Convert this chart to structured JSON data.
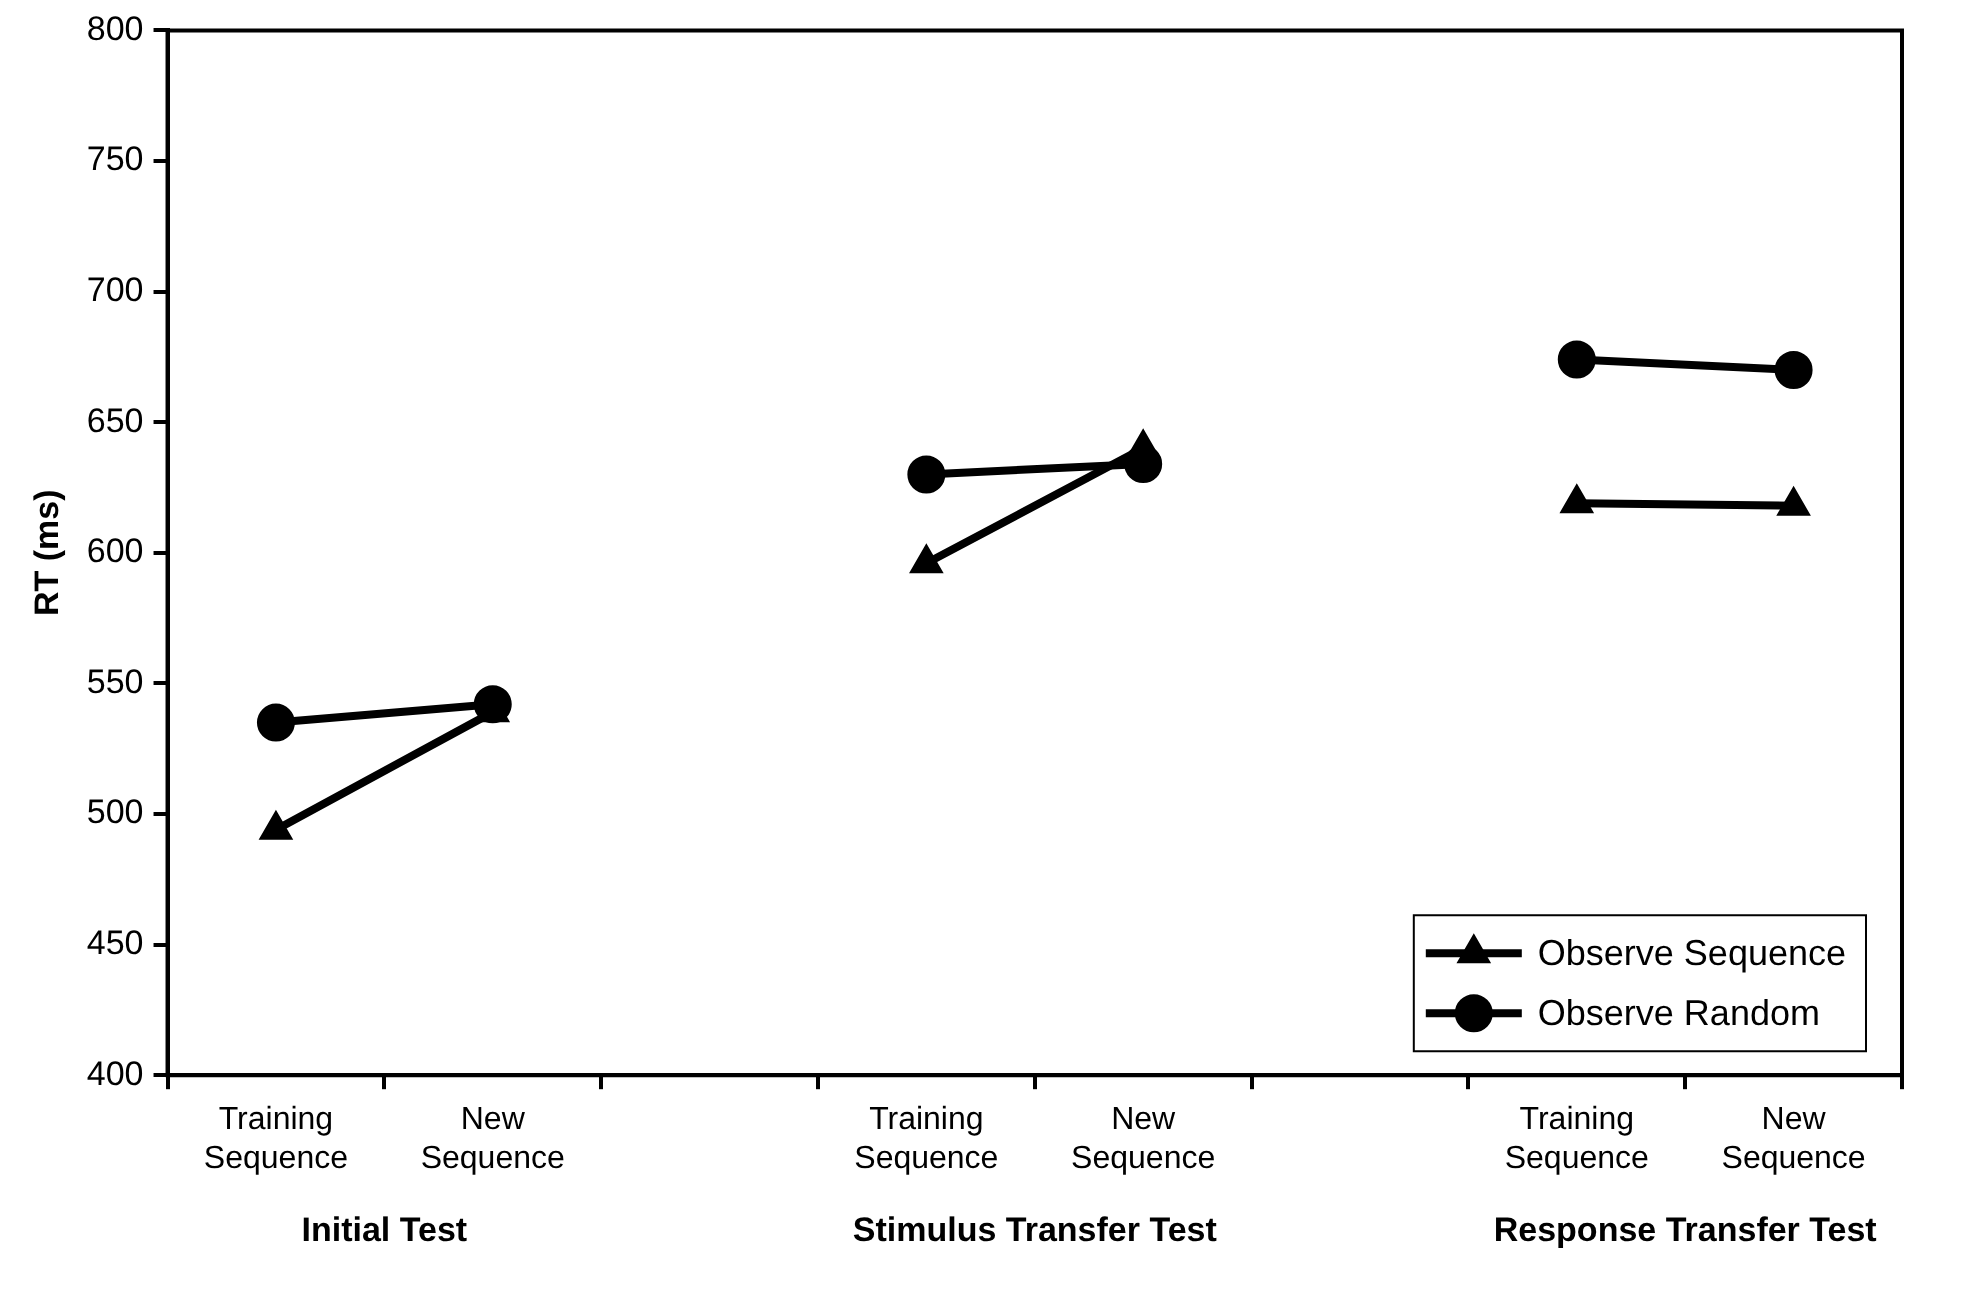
{
  "chart_data": {
    "type": "line",
    "ylabel": "RT (ms)",
    "categories": [
      "Training Sequence",
      "New Sequence",
      null,
      "Training Sequence",
      "New Sequence",
      null,
      "Training Sequence",
      "New Sequence"
    ],
    "series": [
      {
        "name": "Observe Sequence",
        "color": "#000000",
        "marker": "triangle",
        "values": [
          494,
          539,
          null,
          596,
          640,
          null,
          619,
          618
        ]
      },
      {
        "name": "Observe Random",
        "color": "#000000",
        "marker": "circle",
        "values": [
          535,
          542,
          null,
          630,
          634,
          null,
          674,
          670
        ]
      }
    ],
    "ylim": [
      400,
      800
    ],
    "yticks": [
      400,
      450,
      500,
      550,
      600,
      650,
      700,
      750,
      800
    ],
    "grid": false,
    "legend": "bottom right",
    "line_style": "solid",
    "annotations": [
      "Initial Test",
      "Stimulus Transfer Test",
      "Response Transfer Test"
    ]
  }
}
